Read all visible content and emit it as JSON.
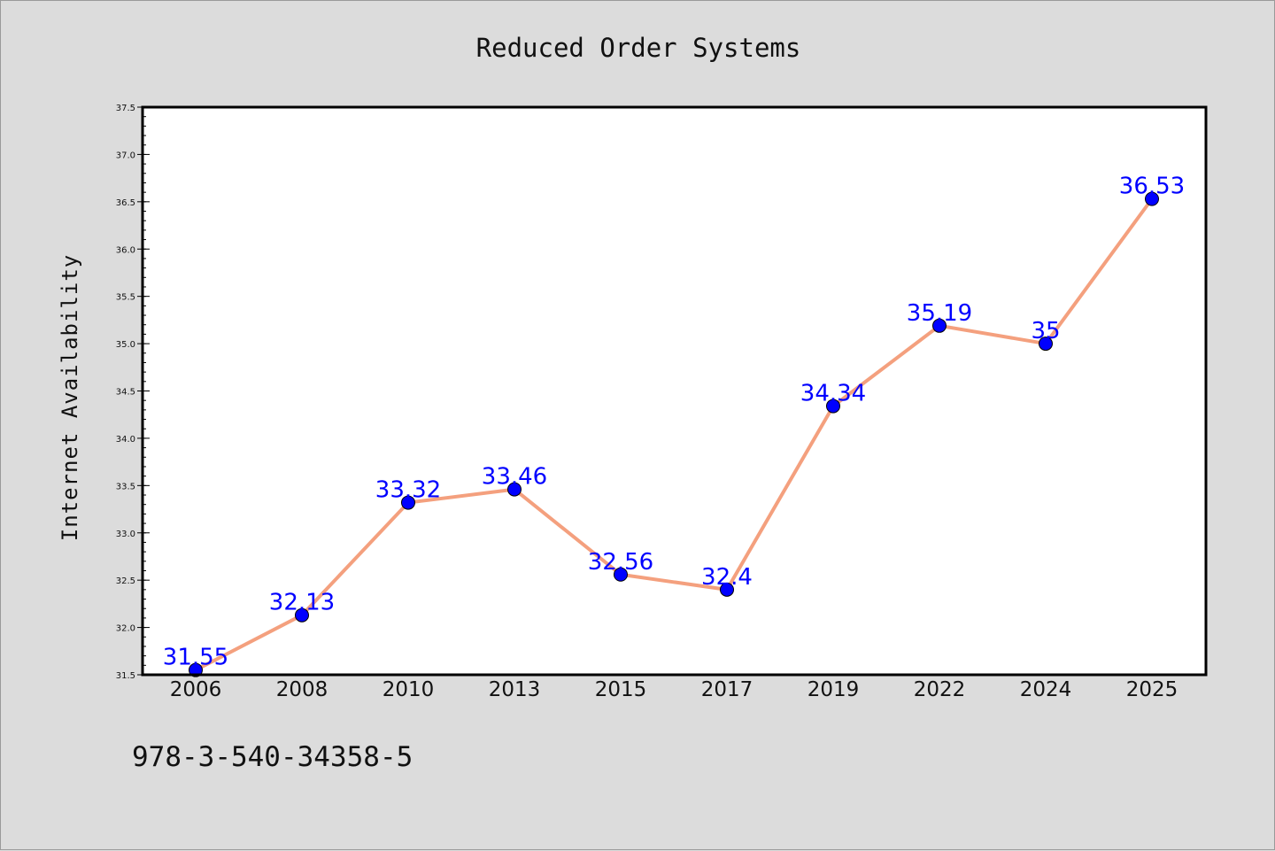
{
  "chart_data": {
    "type": "line",
    "title": "Reduced Order Systems",
    "xlabel": "",
    "ylabel": "Internet Availability",
    "categories": [
      "2006",
      "2008",
      "2010",
      "2013",
      "2015",
      "2017",
      "2019",
      "2022",
      "2024",
      "2025"
    ],
    "series": [
      {
        "values": [
          31.55,
          32.13,
          33.32,
          33.46,
          32.56,
          32.4,
          34.34,
          35.19,
          35,
          36.53
        ],
        "data_labels": [
          "31.55",
          "32.13",
          "33.32",
          "33.46",
          "32.56",
          "32.4",
          "34.34",
          "35.19",
          "35",
          "36.53"
        ],
        "line_color": "#f4a07e",
        "marker_color": "#0000ff"
      }
    ],
    "ylim": [
      31.5,
      37.5
    ],
    "yticks": [
      "31.5",
      "32.0",
      "32.5",
      "33.0",
      "33.5",
      "34.0",
      "34.5",
      "35.0",
      "35.5",
      "36.0",
      "36.5",
      "37.0",
      "37.5"
    ],
    "grid": false,
    "legend": "none"
  },
  "footnote": "978-3-540-34358-5",
  "colors": {
    "background": "#dcdcdc",
    "plot_background": "#ffffff",
    "line": "#f4a07e",
    "marker": "#0000ff",
    "data_label": "#0000ff"
  }
}
